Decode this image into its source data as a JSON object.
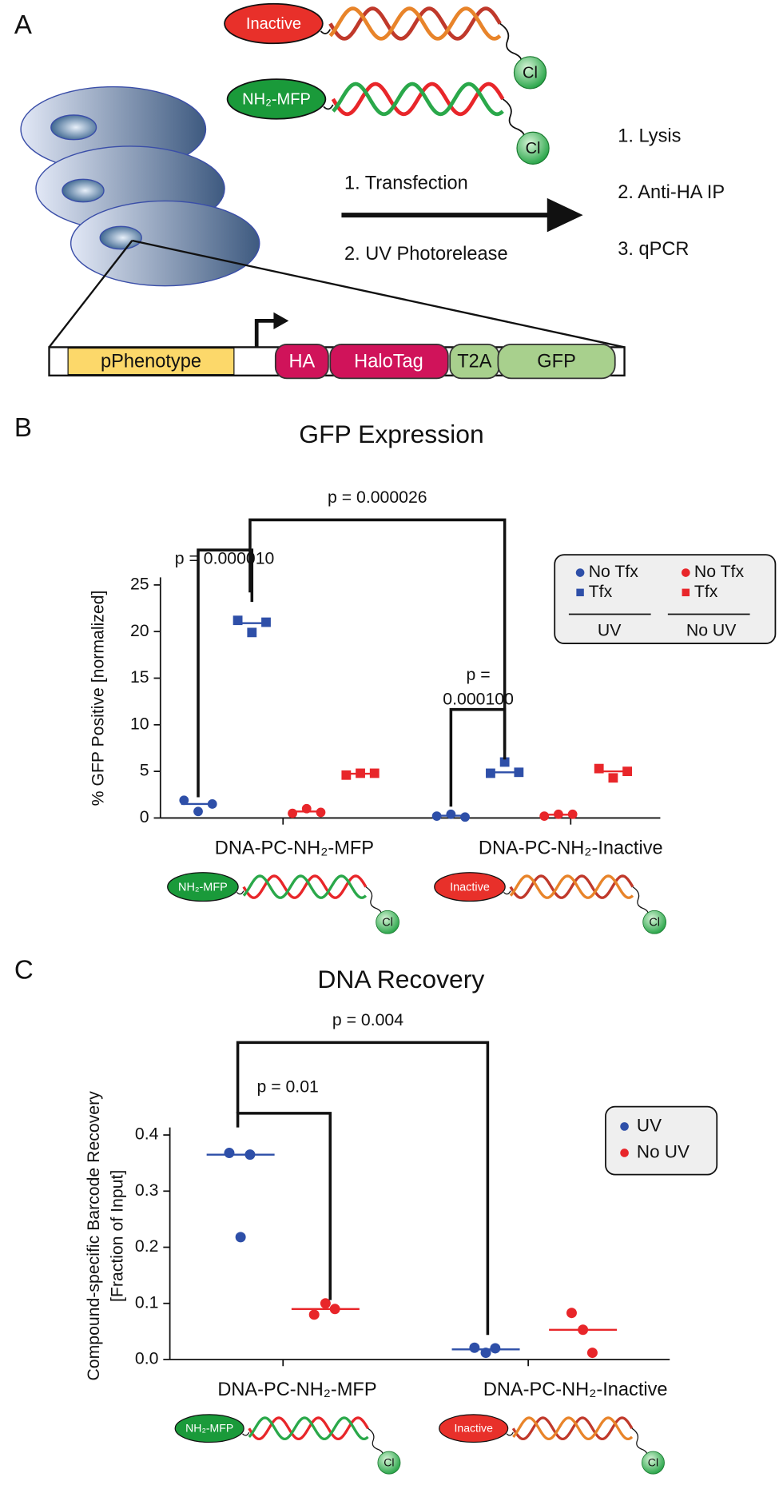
{
  "panel_labels": [
    "A",
    "B",
    "C"
  ],
  "diagram": {
    "molecules": [
      {
        "label": "Inactive",
        "tag": "Cl",
        "color": "#e8302a",
        "helix_colors": [
          "#c0392b",
          "#e8842a"
        ]
      },
      {
        "label": "NH₂-MFP",
        "tag": "Cl",
        "color": "#1a9a3a",
        "helix_colors": [
          "#e8262a",
          "#2aa84a"
        ]
      }
    ],
    "steps": [
      "1. Transfection",
      "2. UV Photorelease"
    ],
    "workup": [
      "1. Lysis",
      "2. Anti-HA IP",
      "3. qPCR"
    ],
    "construct": [
      "pPhenotype",
      "HA",
      "HaloTag",
      "T2A",
      "GFP"
    ]
  },
  "chart_data": [
    {
      "type": "strip",
      "title": "GFP Expression",
      "ylabel": [
        "% GFP Positive [normalized]"
      ],
      "categories": [
        "DNA-PC-NH₂-MFP",
        "DNA-PC-NH₂-Inactive"
      ],
      "category_molecules": [
        {
          "label": "NH₂-MFP",
          "tag": "Cl",
          "color": "#1a9a3a",
          "helix_colors": [
            "#e8262a",
            "#2aa84a"
          ]
        },
        {
          "label": "Inactive",
          "tag": "Cl",
          "color": "#e8302a",
          "helix_colors": [
            "#c0392b",
            "#e8842a"
          ]
        }
      ],
      "ylim": [
        0,
        25
      ],
      "yticks": [
        0,
        5,
        10,
        15,
        20,
        25
      ],
      "legend_groups": [
        "UV",
        "No UV"
      ],
      "series": [
        {
          "name": "No Tfx",
          "color": "#2e4fa8",
          "marker": "circle",
          "values": [
            [
              1.9,
              0.7,
              1.5
            ],
            [
              0.2,
              0.4,
              0.1
            ]
          ],
          "line_values": [
            1.5,
            0.25
          ]
        },
        {
          "name": "Tfx",
          "color": "#2e4fa8",
          "marker": "square",
          "values": [
            [
              21.2,
              19.9,
              21.0
            ],
            [
              4.8,
              6.0,
              4.9
            ]
          ],
          "line_values": [
            20.9,
            4.9
          ]
        },
        {
          "name": "No Tfx",
          "color": "#e8262a",
          "marker": "circle",
          "values": [
            [
              0.5,
              1.0,
              0.6
            ],
            [
              0.2,
              0.4,
              0.4
            ]
          ],
          "line_values": [
            0.7,
            0.35
          ]
        },
        {
          "name": "Tfx",
          "color": "#e8262a",
          "marker": "square",
          "values": [
            [
              4.6,
              4.8,
              4.8
            ],
            [
              5.3,
              4.3,
              5.0
            ]
          ],
          "line_values": [
            4.75,
            5.0
          ]
        }
      ],
      "annotations": [
        [
          "p = 0.000010"
        ],
        [
          "p = 0.000026"
        ],
        [
          "p =",
          "0.000100"
        ]
      ]
    },
    {
      "type": "strip",
      "title": "DNA Recovery",
      "ylabel": [
        "Compound-specific Barcode Recovery",
        "[Fraction of Input]"
      ],
      "categories": [
        "DNA-PC-NH₂-MFP",
        "DNA-PC-NH₂-Inactive"
      ],
      "category_molecules": [
        {
          "label": "NH₂-MFP",
          "tag": "Cl",
          "color": "#1a9a3a",
          "helix_colors": [
            "#e8262a",
            "#2aa84a"
          ]
        },
        {
          "label": "Inactive",
          "tag": "Cl",
          "color": "#e8302a",
          "helix_colors": [
            "#c0392b",
            "#e8842a"
          ]
        }
      ],
      "ylim": [
        0,
        0.4
      ],
      "yticks": [
        {
          "value": 0,
          "label": "0.0"
        },
        0.1,
        0.2,
        0.3,
        0.4
      ],
      "series": [
        {
          "name": "UV",
          "color": "#2e4fa8",
          "marker": "circle",
          "values": [
            [
              0.368,
              0.218,
              0.365
            ],
            [
              0.021,
              0.012,
              0.02
            ]
          ],
          "line_values": [
            0.365,
            0.018
          ]
        },
        {
          "name": "No UV",
          "color": "#e8262a",
          "marker": "circle",
          "values": [
            [
              0.08,
              0.1,
              0.09
            ],
            [
              0.083,
              0.053,
              0.012
            ]
          ],
          "line_values": [
            0.09,
            0.053
          ]
        }
      ],
      "annotations": [
        [
          "p = 0.01"
        ],
        [
          "p = 0.004"
        ]
      ]
    }
  ]
}
